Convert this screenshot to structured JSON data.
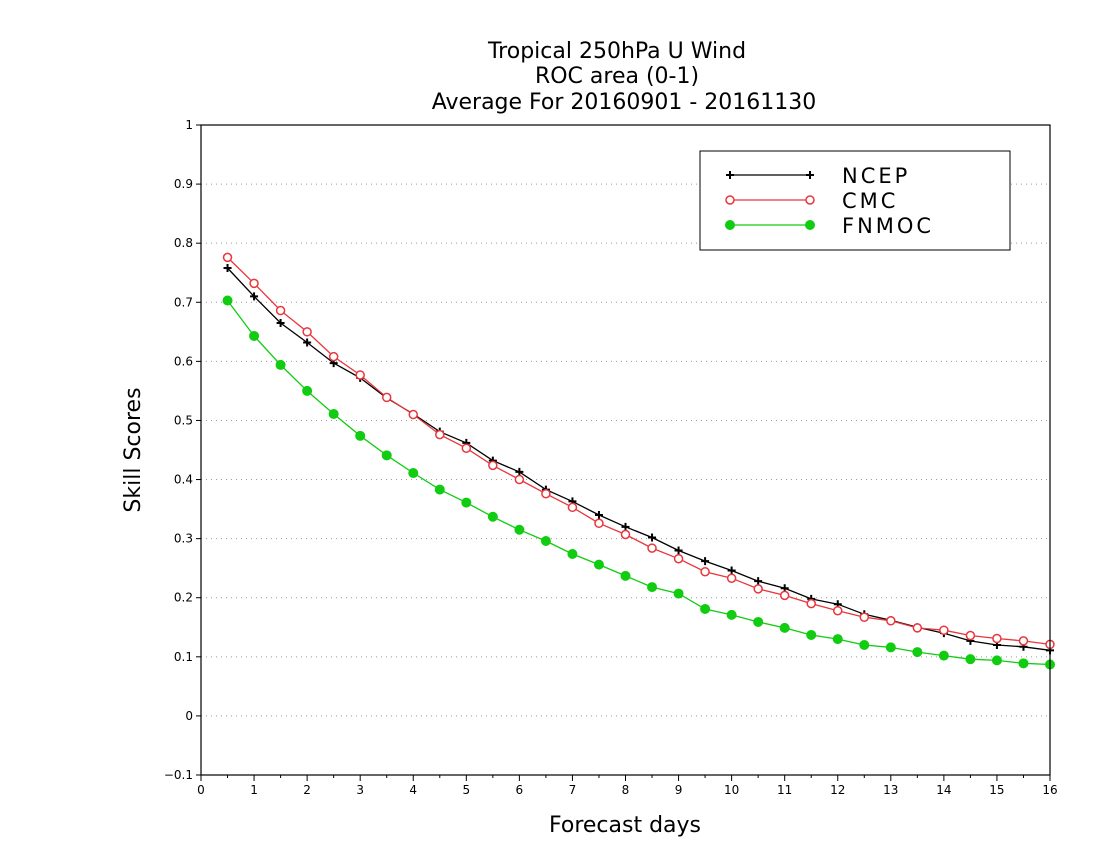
{
  "title_lines": [
    "Tropical 250hPa U Wind",
    "ROC area (0-1)",
    "Average For 20160901 - 20161130"
  ],
  "chart_data": {
    "type": "line",
    "xlabel": "Forecast days",
    "ylabel": "Skill Scores",
    "xlim": [
      0,
      16
    ],
    "ylim": [
      -0.1,
      1
    ],
    "xticks": [
      0,
      1,
      2,
      3,
      4,
      5,
      6,
      7,
      8,
      9,
      10,
      11,
      12,
      13,
      14,
      15,
      16
    ],
    "yticks": [
      -0.1,
      0,
      0.1,
      0.2,
      0.3,
      0.4,
      0.5,
      0.6,
      0.7,
      0.8,
      0.9,
      1
    ],
    "ytick_labels": [
      "−0.1",
      "0",
      "0.1",
      "0.2",
      "0.3",
      "0.4",
      "0.5",
      "0.6",
      "0.7",
      "0.8",
      "0.9",
      "1"
    ],
    "grid": "horizontal dotted",
    "legend_position": "top-right",
    "x": [
      0.5,
      1,
      1.5,
      2,
      2.5,
      3,
      3.5,
      4,
      4.5,
      5,
      5.5,
      6,
      6.5,
      7,
      7.5,
      8,
      8.5,
      9,
      9.5,
      10,
      10.5,
      11,
      11.5,
      12,
      12.5,
      13,
      13.5,
      14,
      14.5,
      15,
      15.5,
      16
    ],
    "series": [
      {
        "name": "NCEP",
        "color": "#000000",
        "marker": "plus",
        "values": [
          0.758,
          0.71,
          0.665,
          0.632,
          0.597,
          0.572,
          0.538,
          0.511,
          0.481,
          0.462,
          0.432,
          0.413,
          0.383,
          0.363,
          0.34,
          0.32,
          0.302,
          0.28,
          0.262,
          0.246,
          0.228,
          0.216,
          0.198,
          0.189,
          0.172,
          0.162,
          0.15,
          0.14,
          0.127,
          0.12,
          0.117,
          0.111
        ]
      },
      {
        "name": "CMC",
        "color": "#e8363c",
        "marker": "open-circle",
        "values": [
          0.776,
          0.732,
          0.686,
          0.65,
          0.608,
          0.577,
          0.539,
          0.51,
          0.476,
          0.453,
          0.424,
          0.4,
          0.376,
          0.353,
          0.326,
          0.307,
          0.284,
          0.266,
          0.244,
          0.233,
          0.215,
          0.204,
          0.19,
          0.178,
          0.167,
          0.161,
          0.149,
          0.145,
          0.136,
          0.131,
          0.127,
          0.121
        ]
      },
      {
        "name": "FNMOC",
        "color": "#11cc11",
        "marker": "filled-circle",
        "values": [
          0.703,
          0.643,
          0.594,
          0.55,
          0.511,
          0.474,
          0.441,
          0.411,
          0.383,
          0.361,
          0.337,
          0.315,
          0.296,
          0.274,
          0.256,
          0.237,
          0.218,
          0.207,
          0.181,
          0.171,
          0.159,
          0.149,
          0.137,
          0.13,
          0.12,
          0.116,
          0.108,
          0.102,
          0.096,
          0.094,
          0.089,
          0.087
        ]
      }
    ]
  }
}
